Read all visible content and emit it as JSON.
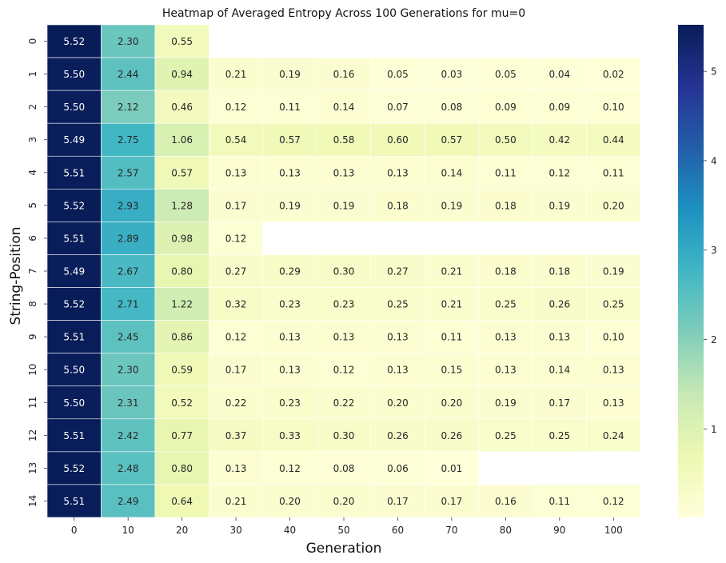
{
  "chart_data": {
    "type": "heatmap",
    "title": "Heatmap of Averaged Entropy Across 100 Generations for mu=0",
    "xlabel": "Generation",
    "ylabel": "String-Position",
    "x_categories": [
      "0",
      "10",
      "20",
      "30",
      "40",
      "50",
      "60",
      "70",
      "80",
      "90",
      "100"
    ],
    "y_categories": [
      "0",
      "1",
      "2",
      "3",
      "4",
      "5",
      "6",
      "7",
      "8",
      "9",
      "10",
      "11",
      "12",
      "13",
      "14"
    ],
    "values": [
      [
        5.52,
        2.3,
        0.55,
        null,
        null,
        null,
        null,
        null,
        null,
        null,
        null
      ],
      [
        5.5,
        2.44,
        0.94,
        0.21,
        0.19,
        0.16,
        0.05,
        0.03,
        0.05,
        0.04,
        0.02
      ],
      [
        5.5,
        2.12,
        0.46,
        0.12,
        0.11,
        0.14,
        0.07,
        0.08,
        0.09,
        0.09,
        0.1
      ],
      [
        5.49,
        2.75,
        1.06,
        0.54,
        0.57,
        0.58,
        0.6,
        0.57,
        0.5,
        0.42,
        0.44
      ],
      [
        5.51,
        2.57,
        0.57,
        0.13,
        0.13,
        0.13,
        0.13,
        0.14,
        0.11,
        0.12,
        0.11
      ],
      [
        5.52,
        2.93,
        1.28,
        0.17,
        0.19,
        0.19,
        0.18,
        0.19,
        0.18,
        0.19,
        0.2
      ],
      [
        5.51,
        2.89,
        0.98,
        0.12,
        null,
        null,
        null,
        null,
        null,
        null,
        null
      ],
      [
        5.49,
        2.67,
        0.8,
        0.27,
        0.29,
        0.3,
        0.27,
        0.21,
        0.18,
        0.18,
        0.19
      ],
      [
        5.52,
        2.71,
        1.22,
        0.32,
        0.23,
        0.23,
        0.25,
        0.21,
        0.25,
        0.26,
        0.25
      ],
      [
        5.51,
        2.45,
        0.86,
        0.12,
        0.13,
        0.13,
        0.13,
        0.11,
        0.13,
        0.13,
        0.1
      ],
      [
        5.5,
        2.3,
        0.59,
        0.17,
        0.13,
        0.12,
        0.13,
        0.15,
        0.13,
        0.14,
        0.13
      ],
      [
        5.5,
        2.31,
        0.52,
        0.22,
        0.23,
        0.22,
        0.2,
        0.2,
        0.19,
        0.17,
        0.13
      ],
      [
        5.51,
        2.42,
        0.77,
        0.37,
        0.33,
        0.3,
        0.26,
        0.26,
        0.25,
        0.25,
        0.24
      ],
      [
        5.52,
        2.48,
        0.8,
        0.13,
        0.12,
        0.08,
        0.06,
        0.01,
        null,
        null,
        null
      ],
      [
        5.51,
        2.49,
        0.64,
        0.21,
        0.2,
        0.2,
        0.17,
        0.17,
        0.16,
        0.11,
        0.12
      ]
    ],
    "colormap": "YlGnBu",
    "colorbar_range": [
      0.01,
      5.52
    ],
    "colorbar_ticks": [
      "1",
      "2",
      "3",
      "4",
      "5"
    ],
    "annotations": true,
    "grid": false
  }
}
